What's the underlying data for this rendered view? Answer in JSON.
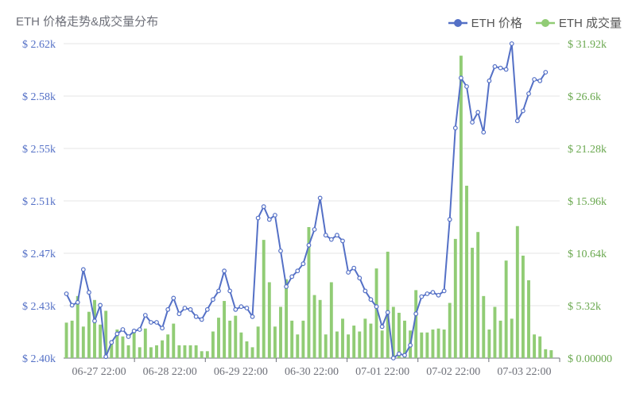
{
  "title": "ETH 价格走势&成交量分布",
  "legend": {
    "price_label": "ETH 价格",
    "volume_label": "ETH 成交量"
  },
  "colors": {
    "price": "#5470c6",
    "volume": "#91cc75",
    "grid": "#e6e6e6",
    "axis": "#6e7079"
  },
  "chart_data": {
    "type": "line+bar",
    "title": "ETH 价格走势&成交量分布",
    "x_ticks": [
      "06-27 22:00",
      "06-28 22:00",
      "06-29 22:00",
      "06-30 22:00",
      "07-01 22:00",
      "07-02 22:00",
      "07-03 22:00"
    ],
    "y_left": {
      "ticks": [
        "$ 2.40k",
        "$ 2.43k",
        "$ 2.47k",
        "$ 2.51k",
        "$ 2.55k",
        "$ 2.58k",
        "$ 2.62k"
      ],
      "range": [
        2400,
        2620
      ]
    },
    "y_right": {
      "ticks": [
        "$ 0.00000",
        "$ 5.32k",
        "$ 10.64k",
        "$ 15.96k",
        "$ 21.28k",
        "$ 26.6k",
        "$ 31.92k"
      ],
      "range": [
        0,
        31920
      ]
    },
    "series": [
      {
        "name": "ETH 价格",
        "type": "line",
        "axis": "left",
        "values": [
          2445,
          2437,
          2439,
          2462,
          2446,
          2426,
          2437,
          2401,
          2411,
          2417,
          2420,
          2415,
          2419,
          2420,
          2430,
          2425,
          2425,
          2421,
          2434,
          2442,
          2431,
          2435,
          2434,
          2429,
          2427,
          2434,
          2441,
          2447,
          2461,
          2447,
          2434,
          2436,
          2435,
          2429,
          2498,
          2506,
          2497,
          2500,
          2475,
          2450,
          2457,
          2461,
          2466,
          2479,
          2490,
          2512,
          2486,
          2483,
          2486,
          2482,
          2460,
          2463,
          2456,
          2447,
          2441,
          2436,
          2422,
          2432,
          2400,
          2403,
          2402,
          2409,
          2431,
          2443,
          2445,
          2446,
          2444,
          2447,
          2497,
          2561,
          2596,
          2590,
          2565,
          2572,
          2558,
          2594,
          2604,
          2603,
          2602,
          2620,
          2566,
          2573,
          2585,
          2595,
          2594,
          2600
        ],
        "x_index_start": 0
      },
      {
        "name": "ETH 成交量",
        "type": "bar",
        "axis": "right",
        "values": [
          4200,
          3600,
          3800,
          6300,
          3200,
          4700,
          5900,
          3400,
          4800,
          1800,
          2900,
          2200,
          1300,
          2600,
          1100,
          3000,
          1100,
          1300,
          1800,
          2400,
          3500,
          1300,
          1300,
          1300,
          1300,
          700,
          700,
          2700,
          4100,
          5800,
          3800,
          4300,
          2600,
          1700,
          1100,
          3200,
          12000,
          7700,
          3200,
          5200,
          8000,
          3800,
          2400,
          3800,
          13300,
          6400,
          5900,
          2400,
          7700,
          2700,
          4000,
          2400,
          3300,
          2700,
          4000,
          3500,
          9100,
          2800,
          10800,
          5200,
          4600,
          3800,
          2800,
          6900,
          2600,
          2600,
          2900,
          3000,
          2900,
          5600,
          12100,
          30700,
          17500,
          11200,
          12800,
          6300,
          2900,
          5200,
          3800,
          9900,
          4000,
          13400,
          10400,
          7900,
          2400,
          2200,
          900,
          800
        ],
        "x_index_start": -1
      }
    ],
    "x_axis_type": "time",
    "grid": true,
    "legend_position": "top-right"
  }
}
